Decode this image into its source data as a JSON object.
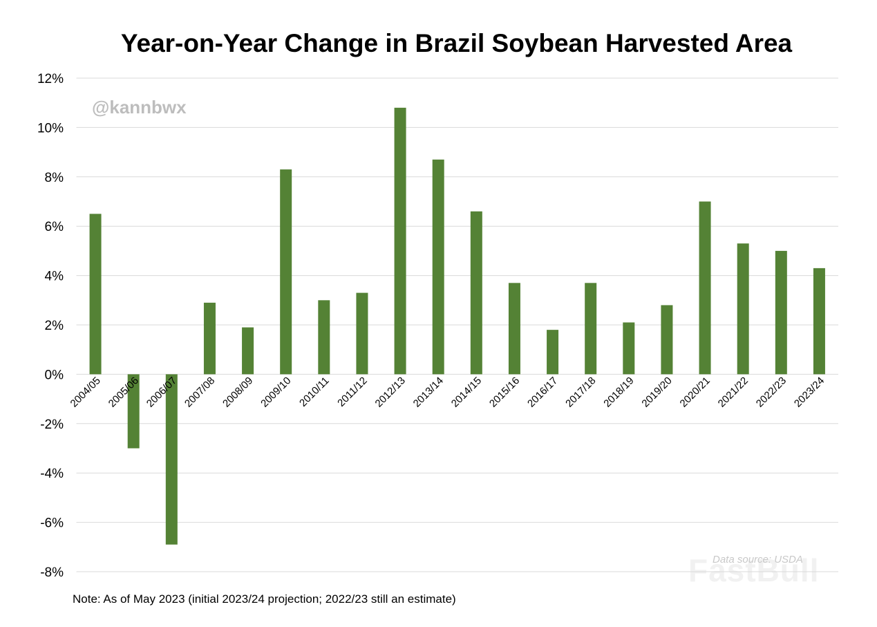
{
  "chart_data": {
    "type": "bar",
    "title": "Year-on-Year Change in Brazil Soybean Harvested Area",
    "xlabel": "",
    "ylabel": "",
    "categories": [
      "2004/05",
      "2005/06",
      "2006/07",
      "2007/08",
      "2008/09",
      "2009/10",
      "2010/11",
      "2011/12",
      "2012/13",
      "2013/14",
      "2014/15",
      "2015/16",
      "2016/17",
      "2017/18",
      "2018/19",
      "2019/20",
      "2020/21",
      "2021/22",
      "2022/23",
      "2023/24"
    ],
    "values": [
      6.5,
      -3.0,
      -6.9,
      2.9,
      1.9,
      8.3,
      3.0,
      3.3,
      10.8,
      8.7,
      6.6,
      3.7,
      1.8,
      3.7,
      2.1,
      2.8,
      7.0,
      5.3,
      5.0,
      4.3
    ],
    "unit": "%",
    "ylim": [
      -8,
      12
    ],
    "yticks": [
      12,
      10,
      8,
      6,
      4,
      2,
      0,
      -2,
      -4,
      -6,
      -8
    ],
    "ytick_labels": [
      "12%",
      "10%",
      "8%",
      "6%",
      "4%",
      "2%",
      "0%",
      "-2%",
      "-4%",
      "-6%",
      "-8%"
    ],
    "grid": true,
    "legend": "none",
    "bar_color": "#548235",
    "grid_color": "#d9d9d9"
  },
  "note": "Note: As of May 2023 (initial 2023/24 projection; 2022/23 still an estimate)",
  "handle": "@kannbwx",
  "source": "Data source: USDA",
  "watermark": "FastBull"
}
